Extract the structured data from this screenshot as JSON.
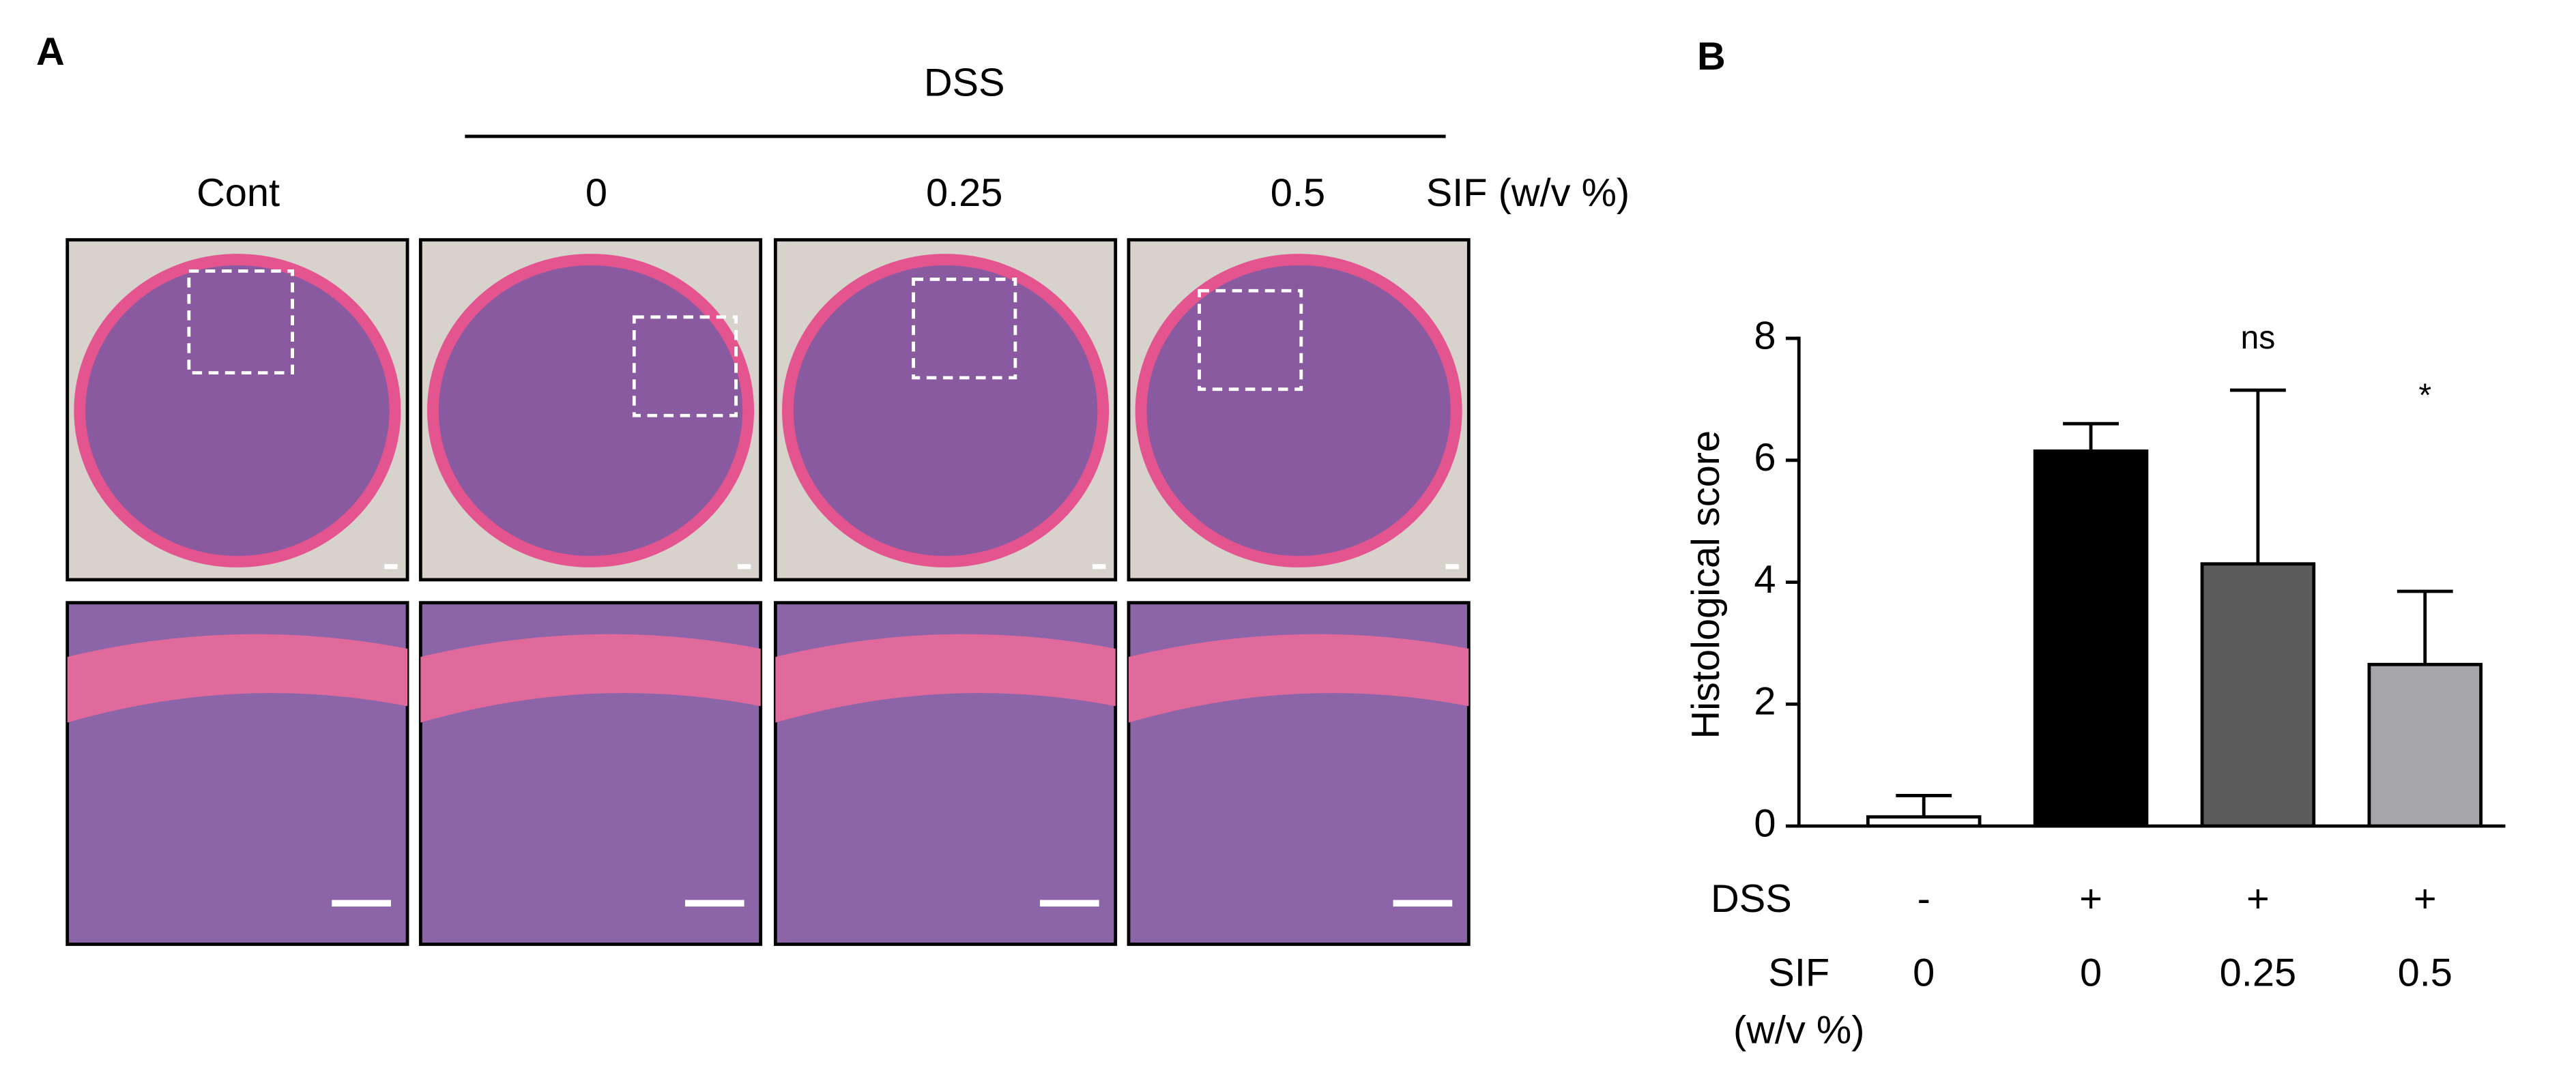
{
  "panel_a": {
    "label": "A",
    "group_label": "DSS",
    "columns": [
      "Cont",
      "0",
      "0.25",
      "0.5"
    ],
    "dose_label": "SIF (w/v %)"
  },
  "chart_data": {
    "type": "bar",
    "panel_label": "B",
    "y_label": "Histological score",
    "categories": [
      "0",
      "0",
      "0.25",
      "0.5"
    ],
    "dss_label": "DSS",
    "dss": [
      "-",
      "+",
      "+",
      "+"
    ],
    "sif_label": "SIF",
    "sif_unit": "(w/v %)",
    "values": [
      0.15,
      6.15,
      4.3,
      2.65
    ],
    "errors": [
      0.35,
      0.45,
      2.85,
      1.2
    ],
    "colors": [
      "#ffffff",
      "#000000",
      "#5b5b5b",
      "#a7a7ab"
    ],
    "annotations": [
      null,
      null,
      "ns",
      "*"
    ],
    "ylim": [
      0,
      8
    ],
    "yticks": [
      0,
      2,
      4,
      6,
      8
    ]
  }
}
